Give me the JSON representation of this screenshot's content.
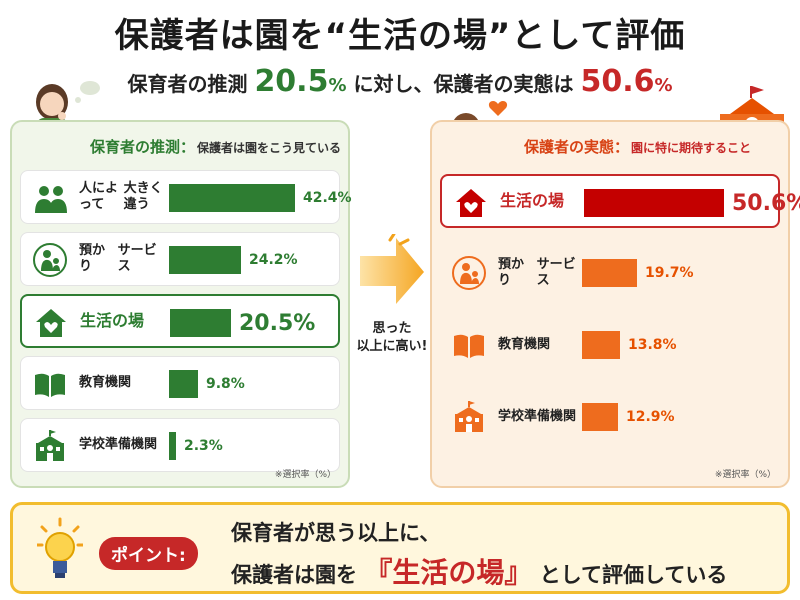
{
  "title": "保護者は園を“生活の場”として評価",
  "subtitle": {
    "part1": "保育者の推測",
    "value1": "20.5",
    "unit1": "%",
    "part2": "に対し、保護者の実態は",
    "value2": "50.6",
    "unit2": "%"
  },
  "middle_text": [
    "思った",
    "以上に高い!"
  ],
  "note": "※選択率（%）",
  "colors": {
    "green": "#2e7d32",
    "orange": "#ee6c1e",
    "red": "#c40000"
  },
  "point": {
    "badge": "ポイント:",
    "line1": "保育者が思う以上に、",
    "line2_pre": "保護者は園を",
    "line2_highlight": "『生活の場』",
    "line2_post": "として評価している"
  },
  "chart_data": [
    {
      "type": "bar",
      "title": "保育者の推測：",
      "subtitle": "保護者は園をこう見ている",
      "categories": [
        "人によって大きく違う",
        "預かりサービス",
        "生活の場",
        "教育機関",
        "学校準備機関"
      ],
      "labels_display": [
        [
          "人によって",
          "大きく違う"
        ],
        [
          "預かり",
          "サービス"
        ],
        [
          "生活の場"
        ],
        [
          "教育機関"
        ],
        [
          "学校準備機関"
        ]
      ],
      "values": [
        42.4,
        24.2,
        20.5,
        9.8,
        2.3
      ],
      "value_labels": [
        "42.4%",
        "24.2%",
        "20.5%",
        "9.8%",
        "2.3%"
      ],
      "icons": [
        "people-icon",
        "parent-child-icon",
        "house-heart-icon",
        "book-icon",
        "school-icon"
      ],
      "highlight": 2,
      "xlim": [
        0,
        42.4
      ]
    },
    {
      "type": "bar",
      "title": "保護者の実態：",
      "subtitle": "園に特に期待すること",
      "categories": [
        "生活の場",
        "預かりサービス",
        "教育機関",
        "学校準備機関"
      ],
      "labels_display": [
        [
          "生活の場"
        ],
        [
          "預かり",
          "サービス"
        ],
        [
          "教育機関"
        ],
        [
          "学校準備機関"
        ]
      ],
      "values": [
        50.6,
        19.7,
        13.8,
        12.9
      ],
      "value_labels": [
        "50.6%",
        "19.7%",
        "13.8%",
        "12.9%"
      ],
      "icons": [
        "house-heart-icon",
        "parent-child-icon",
        "book-icon",
        "school-icon"
      ],
      "highlight": 0,
      "xlim": [
        0,
        50.6
      ]
    }
  ]
}
